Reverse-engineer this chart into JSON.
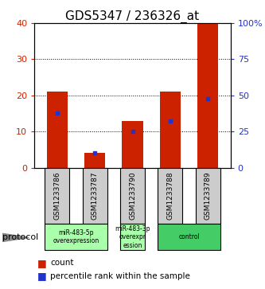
{
  "title": "GDS5347 / 236326_at",
  "samples": [
    "GSM1233786",
    "GSM1233787",
    "GSM1233790",
    "GSM1233788",
    "GSM1233789"
  ],
  "count_values": [
    21,
    4,
    13,
    21,
    40
  ],
  "percentile_values": [
    15,
    4,
    10,
    13,
    19
  ],
  "left_ylim": [
    0,
    40
  ],
  "right_ylim": [
    0,
    100
  ],
  "left_yticks": [
    0,
    10,
    20,
    30,
    40
  ],
  "right_yticks": [
    0,
    25,
    50,
    75,
    100
  ],
  "right_yticklabels": [
    "0",
    "25",
    "50",
    "75",
    "100%"
  ],
  "bar_color": "#cc2200",
  "percentile_color": "#2233cc",
  "bar_width": 0.55,
  "groups": [
    {
      "label": "miR-483-5p\noverexpression",
      "indices": [
        0,
        1
      ],
      "color": "#aaffaa"
    },
    {
      "label": "miR-483-3p\noverexpr\nession",
      "indices": [
        2
      ],
      "color": "#aaffaa"
    },
    {
      "label": "control",
      "indices": [
        3,
        4
      ],
      "color": "#44cc66"
    }
  ],
  "protocol_label": "protocol",
  "legend_count_label": "count",
  "legend_percentile_label": "percentile rank within the sample",
  "title_fontsize": 11,
  "axis_label_color_left": "#cc2200",
  "axis_label_color_right": "#2233cc",
  "bg_color": "#ffffff",
  "xticklabel_bg": "#cccccc",
  "grid_dotted_ticks": [
    10,
    20,
    30
  ]
}
